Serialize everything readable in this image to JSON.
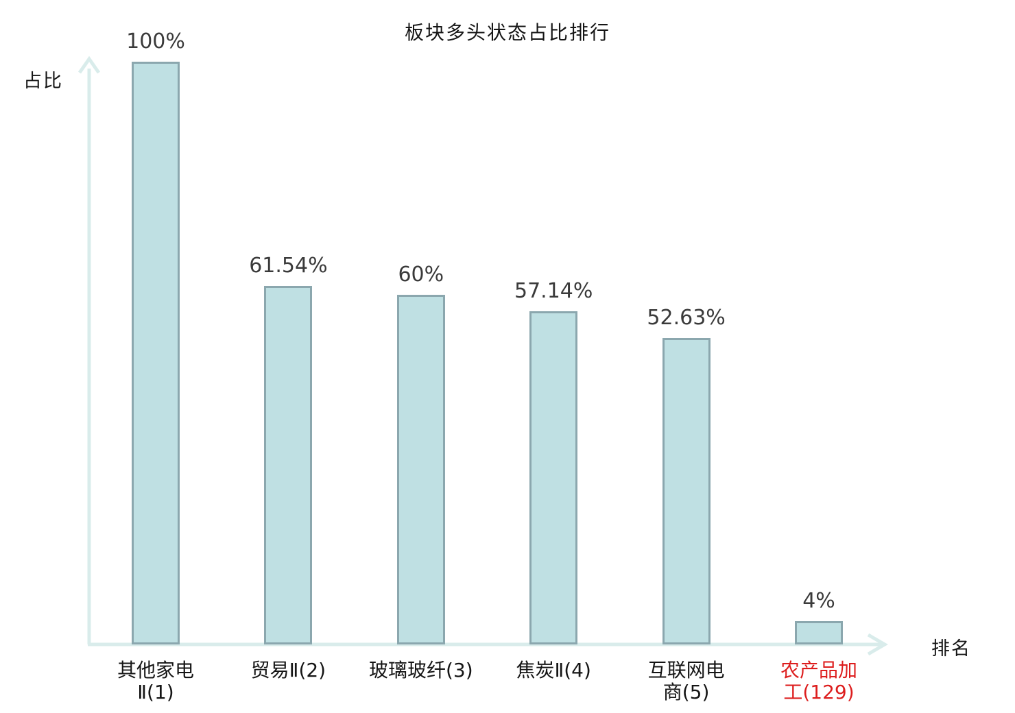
{
  "title": "板块多头状态占比排行",
  "y_axis_label": "占比",
  "x_axis_label": "排名",
  "colors": {
    "bar_fill": "#bfe0e3",
    "bar_border": "#8ba7ae",
    "axis": "#d9eceb",
    "value_text": "#3a3a3a",
    "category_text": "#151515",
    "highlight_text": "#dd1e1e",
    "background": "#ffffff"
  },
  "chart_data": {
    "type": "bar",
    "title": "板块多头状态占比排行",
    "xlabel": "排名",
    "ylabel": "占比",
    "categories": [
      "其他家电Ⅱ(1)",
      "贸易Ⅱ(2)",
      "玻璃玻纤(3)",
      "焦炭Ⅱ(4)",
      "互联网电商(5)",
      "农产品加工(129)"
    ],
    "category_lines": [
      [
        "其他家电",
        "Ⅱ(1)"
      ],
      [
        "贸易Ⅱ(2)"
      ],
      [
        "玻璃玻纤(3)"
      ],
      [
        "焦炭Ⅱ(4)"
      ],
      [
        "互联网电",
        "商(5)"
      ],
      [
        "农产品加",
        "工(129)"
      ]
    ],
    "values": [
      100,
      61.54,
      60,
      57.14,
      52.63,
      4
    ],
    "value_labels": [
      "100%",
      "61.54%",
      "60%",
      "57.14%",
      "52.63%",
      "4%"
    ],
    "highlighted_category_index": 5,
    "ylim": [
      0,
      100
    ],
    "grid": false,
    "legend": false,
    "bar_color": "#bfe0e3"
  }
}
